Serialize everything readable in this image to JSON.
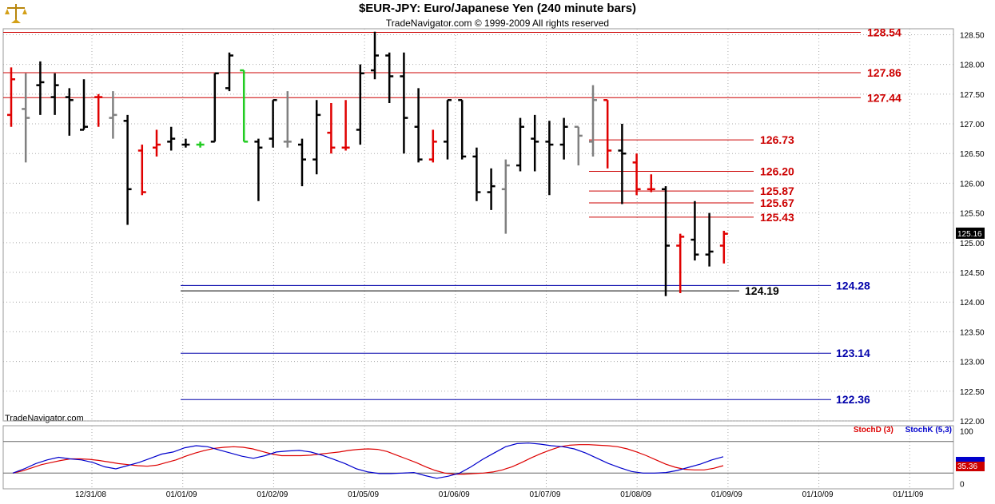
{
  "title": "$EUR-JPY:  Euro/Japanese Yen  (240 minute bars)",
  "subtitle": "TradeNavigator.com © 1999-2009 All rights reserved",
  "watermark": "TradeNavigator.com",
  "logo_icon": "gold-scales-logo",
  "colors": {
    "bar_up": "#000000",
    "bar_down": "#e00000",
    "bar_neutral": "#808080",
    "bar_highlight": "#22cc22",
    "resistance": "#cc0000",
    "support": "#0000aa",
    "support_black": "#000000",
    "stoch_d": "#dd0000",
    "stoch_k": "#0000cc",
    "price_tag_bg": "#000000",
    "stoch_tag_bg": "#cc0000"
  },
  "chart_data": [
    {
      "type": "ohlc",
      "ylim": [
        122.0,
        128.6
      ],
      "yticks": [
        "128.50",
        "128.00",
        "127.50",
        "127.00",
        "126.50",
        "126.00",
        "125.50",
        "125.00",
        "124.50",
        "124.00",
        "123.50",
        "123.00",
        "122.50",
        "122.00"
      ],
      "x_tick_labels": [
        "12/31/08",
        "01/01/09",
        "01/02/09",
        "01/05/09",
        "01/06/09",
        "01/07/09",
        "01/08/09",
        "01/09/09",
        "01/10/09",
        "01/11/09"
      ],
      "last_price_label": "125.16",
      "last_price": 125.16,
      "bars": [
        {
          "o": 127.15,
          "h": 127.95,
          "l": 126.95,
          "c": 127.75,
          "t": "down"
        },
        {
          "o": 127.25,
          "h": 127.85,
          "l": 126.35,
          "c": 127.1,
          "t": "neutral"
        },
        {
          "o": 127.65,
          "h": 128.05,
          "l": 127.15,
          "c": 127.7,
          "t": "up"
        },
        {
          "o": 127.45,
          "h": 127.85,
          "l": 127.15,
          "c": 127.65,
          "t": "up"
        },
        {
          "o": 127.45,
          "h": 127.6,
          "l": 126.8,
          "c": 127.4,
          "t": "up"
        },
        {
          "o": 126.9,
          "h": 127.75,
          "l": 126.9,
          "c": 126.95,
          "t": "up"
        },
        {
          "o": 127.45,
          "h": 127.5,
          "l": 126.95,
          "c": 127.45,
          "t": "down"
        },
        {
          "o": 127.1,
          "h": 127.55,
          "l": 126.75,
          "c": 127.15,
          "t": "neutral"
        },
        {
          "o": 127.05,
          "h": 127.15,
          "l": 125.3,
          "c": 125.9,
          "t": "up"
        },
        {
          "o": 126.55,
          "h": 126.65,
          "l": 125.8,
          "c": 125.85,
          "t": "down"
        },
        {
          "o": 126.6,
          "h": 126.9,
          "l": 126.45,
          "c": 126.65,
          "t": "down"
        },
        {
          "o": 126.7,
          "h": 126.95,
          "l": 126.55,
          "c": 126.75,
          "t": "up"
        },
        {
          "o": 126.65,
          "h": 126.75,
          "l": 126.6,
          "c": 126.65,
          "t": "up"
        },
        {
          "o": 126.65,
          "h": 126.7,
          "l": 126.6,
          "c": 126.65,
          "t": "highlight"
        },
        {
          "o": 126.7,
          "h": 127.85,
          "l": 126.7,
          "c": 127.85,
          "t": "up"
        },
        {
          "o": 127.6,
          "h": 128.2,
          "l": 127.55,
          "c": 128.15,
          "t": "up"
        },
        {
          "o": 127.9,
          "h": 127.9,
          "l": 126.7,
          "c": 126.7,
          "t": "highlight"
        },
        {
          "o": 126.7,
          "h": 126.75,
          "l": 125.7,
          "c": 126.6,
          "t": "up"
        },
        {
          "o": 126.75,
          "h": 127.4,
          "l": 126.6,
          "c": 127.4,
          "t": "up"
        },
        {
          "o": 126.7,
          "h": 127.55,
          "l": 126.6,
          "c": 126.7,
          "t": "neutral"
        },
        {
          "o": 126.65,
          "h": 126.75,
          "l": 125.95,
          "c": 126.4,
          "t": "up"
        },
        {
          "o": 126.4,
          "h": 127.4,
          "l": 126.15,
          "c": 127.15,
          "t": "up"
        },
        {
          "o": 126.85,
          "h": 127.35,
          "l": 126.5,
          "c": 126.6,
          "t": "down"
        },
        {
          "o": 126.6,
          "h": 127.4,
          "l": 126.55,
          "c": 126.6,
          "t": "down"
        },
        {
          "o": 126.9,
          "h": 128.0,
          "l": 126.65,
          "c": 127.85,
          "t": "up"
        },
        {
          "o": 127.9,
          "h": 128.55,
          "l": 127.75,
          "c": 128.15,
          "t": "up"
        },
        {
          "o": 128.15,
          "h": 128.2,
          "l": 127.35,
          "c": 127.8,
          "t": "up"
        },
        {
          "o": 127.8,
          "h": 128.2,
          "l": 126.5,
          "c": 127.1,
          "t": "up"
        },
        {
          "o": 126.95,
          "h": 127.6,
          "l": 126.35,
          "c": 126.4,
          "t": "up"
        },
        {
          "o": 126.4,
          "h": 126.9,
          "l": 126.35,
          "c": 126.7,
          "t": "down"
        },
        {
          "o": 126.7,
          "h": 127.4,
          "l": 126.4,
          "c": 127.4,
          "t": "up"
        },
        {
          "o": 127.4,
          "h": 127.4,
          "l": 126.4,
          "c": 126.45,
          "t": "up"
        },
        {
          "o": 126.45,
          "h": 126.6,
          "l": 125.7,
          "c": 125.85,
          "t": "up"
        },
        {
          "o": 125.85,
          "h": 126.25,
          "l": 125.55,
          "c": 125.95,
          "t": "up"
        },
        {
          "o": 125.9,
          "h": 126.4,
          "l": 125.15,
          "c": 126.3,
          "t": "neutral"
        },
        {
          "o": 126.3,
          "h": 127.1,
          "l": 126.2,
          "c": 126.95,
          "t": "up"
        },
        {
          "o": 126.75,
          "h": 127.15,
          "l": 126.2,
          "c": 126.7,
          "t": "up"
        },
        {
          "o": 126.7,
          "h": 127.05,
          "l": 125.8,
          "c": 126.65,
          "t": "up"
        },
        {
          "o": 126.65,
          "h": 127.1,
          "l": 126.4,
          "c": 126.95,
          "t": "up"
        },
        {
          "o": 126.95,
          "h": 126.95,
          "l": 126.3,
          "c": 126.8,
          "t": "neutral"
        },
        {
          "o": 126.7,
          "h": 127.65,
          "l": 126.45,
          "c": 127.4,
          "t": "neutral"
        },
        {
          "o": 127.4,
          "h": 127.4,
          "l": 126.25,
          "c": 126.55,
          "t": "down"
        },
        {
          "o": 126.55,
          "h": 127.0,
          "l": 125.65,
          "c": 126.5,
          "t": "up"
        },
        {
          "o": 126.35,
          "h": 126.5,
          "l": 125.8,
          "c": 125.9,
          "t": "down"
        },
        {
          "o": 125.9,
          "h": 126.15,
          "l": 125.85,
          "c": 125.9,
          "t": "down"
        },
        {
          "o": 125.9,
          "h": 125.95,
          "l": 124.1,
          "c": 124.95,
          "t": "up"
        },
        {
          "o": 124.95,
          "h": 125.15,
          "l": 124.15,
          "c": 125.1,
          "t": "down"
        },
        {
          "o": 125.05,
          "h": 125.7,
          "l": 124.7,
          "c": 124.8,
          "t": "up"
        },
        {
          "o": 124.8,
          "h": 125.5,
          "l": 124.6,
          "c": 124.85,
          "t": "up"
        },
        {
          "o": 124.95,
          "h": 125.2,
          "l": 124.65,
          "c": 125.15,
          "t": "down"
        }
      ],
      "resistance_levels": [
        {
          "value": 128.54,
          "label": "128.54",
          "span": "full"
        },
        {
          "value": 127.86,
          "label": "127.86",
          "span": "full"
        },
        {
          "value": 127.44,
          "label": "127.44",
          "span": "full"
        },
        {
          "value": 126.73,
          "label": "126.73",
          "span": "short"
        },
        {
          "value": 126.2,
          "label": "126.20",
          "span": "short"
        },
        {
          "value": 125.87,
          "label": "125.87",
          "span": "short"
        },
        {
          "value": 125.67,
          "label": "125.67",
          "span": "short"
        },
        {
          "value": 125.43,
          "label": "125.43",
          "span": "short"
        }
      ],
      "support_levels": [
        {
          "value": 124.28,
          "label": "124.28",
          "color": "blue"
        },
        {
          "value": 124.19,
          "label": "124.19",
          "color": "black"
        },
        {
          "value": 123.14,
          "label": "123.14",
          "color": "blue"
        },
        {
          "value": 122.36,
          "label": "122.36",
          "color": "blue"
        }
      ]
    },
    {
      "type": "line",
      "title_d": "StochD (3)",
      "title_k": "StochK (5,3)",
      "ylim": [
        -10,
        110
      ],
      "yticks": [
        "100",
        "0"
      ],
      "guide_levels": [
        80,
        20
      ],
      "last_value_label": "35.36",
      "series": [
        {
          "name": "StochD (3)",
          "values": [
            20,
            24,
            30,
            36,
            40,
            44,
            47,
            47,
            46,
            44,
            41,
            38,
            36,
            34,
            33,
            35,
            40,
            45,
            52,
            58,
            63,
            67,
            69,
            70,
            69,
            66,
            61,
            56,
            53,
            53,
            53,
            54,
            56,
            58,
            60,
            63,
            65,
            66,
            65,
            61,
            54,
            47,
            40,
            32,
            25,
            20,
            18,
            18,
            19,
            20,
            22,
            26,
            32,
            40,
            49,
            57,
            64,
            70,
            73,
            74,
            74,
            73,
            72,
            70,
            66,
            60,
            53,
            45,
            37,
            31,
            27,
            26,
            26,
            29,
            34
          ]
        },
        {
          "name": "StochK (5,3)",
          "values": [
            20,
            28,
            38,
            45,
            50,
            47,
            45,
            40,
            32,
            28,
            34,
            40,
            48,
            56,
            60,
            68,
            72,
            70,
            64,
            58,
            52,
            48,
            53,
            60,
            62,
            63,
            60,
            54,
            46,
            38,
            28,
            22,
            19,
            19,
            20,
            21,
            15,
            10,
            14,
            20,
            32,
            46,
            58,
            70,
            76,
            77,
            75,
            72,
            70,
            66,
            58,
            48,
            38,
            30,
            23,
            20,
            20,
            21,
            25,
            31,
            37,
            45,
            51
          ]
        }
      ]
    }
  ]
}
